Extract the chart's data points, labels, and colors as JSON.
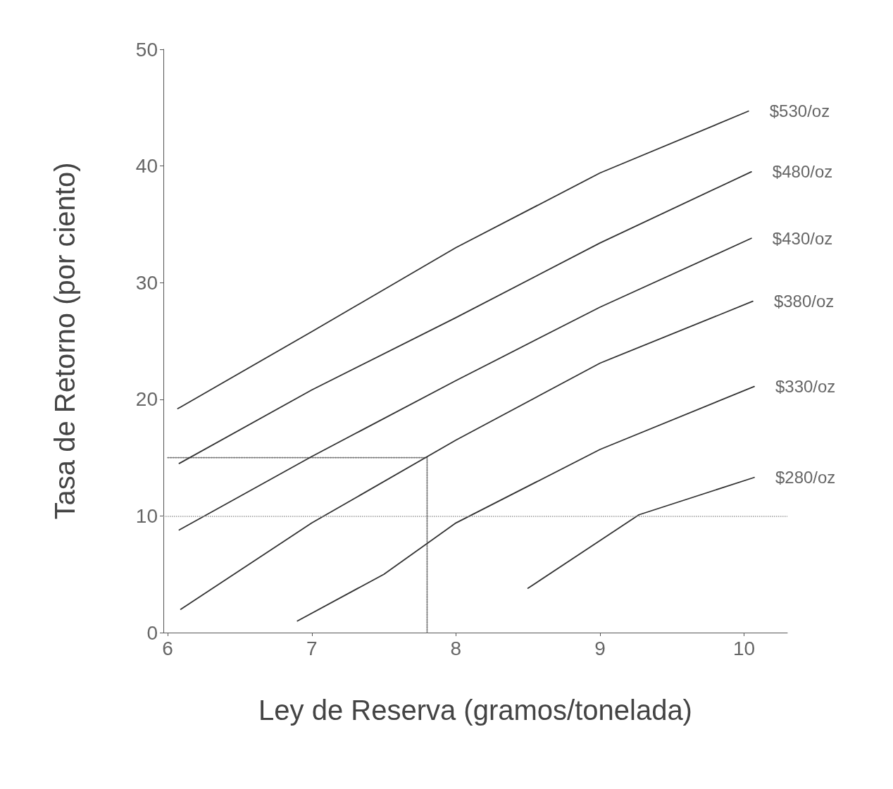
{
  "chart_data": {
    "type": "line",
    "xlabel": "Ley de Reserva (gramos/tonelada)",
    "ylabel": "Tasa de Retorno (por ciento)",
    "xlim": [
      5.97,
      10.3
    ],
    "xticks": [
      6,
      7,
      8,
      9,
      10
    ],
    "ylim": [
      0,
      50
    ],
    "yticks": [
      0,
      10,
      20,
      30,
      40,
      50
    ],
    "grid": false,
    "legend": false,
    "marker": "none",
    "line_style": "solid",
    "series": [
      {
        "name": "$530/oz",
        "color": "#333333",
        "x": [
          6.07,
          7,
          8,
          9,
          10.03
        ],
        "values": [
          19.2,
          25.8,
          33,
          39.4,
          44.7
        ]
      },
      {
        "name": "$480/oz",
        "color": "#333333",
        "x": [
          6.08,
          7,
          8,
          9,
          10.05
        ],
        "values": [
          14.5,
          20.8,
          27,
          33.4,
          39.5
        ]
      },
      {
        "name": "$430/oz",
        "color": "#333333",
        "x": [
          6.08,
          7,
          8,
          9,
          10.05
        ],
        "values": [
          8.8,
          15.1,
          21.6,
          27.9,
          33.8
        ]
      },
      {
        "name": "$380/oz",
        "color": "#333333",
        "x": [
          6.09,
          7,
          8,
          9,
          10.06
        ],
        "values": [
          2,
          9.4,
          16.5,
          23.1,
          28.4
        ]
      },
      {
        "name": "$330/oz",
        "color": "#333333",
        "x": [
          6.9,
          7.5,
          8,
          9,
          10.07
        ],
        "values": [
          1,
          5,
          9.4,
          15.7,
          21.1
        ]
      },
      {
        "name": "$280/oz",
        "color": "#333333",
        "x": [
          8.5,
          9.27,
          10.07
        ],
        "values": [
          3.8,
          10.1,
          13.3
        ]
      },
      {
        "color": "#777777",
        "line_style": "dotted",
        "x": [
          6,
          7.8,
          7.8
        ],
        "values": [
          15,
          15,
          0
        ]
      }
    ],
    "ref_lines": [
      {
        "axis": "y",
        "value": 10,
        "color": "#999999",
        "line_style": "dotted"
      }
    ]
  }
}
